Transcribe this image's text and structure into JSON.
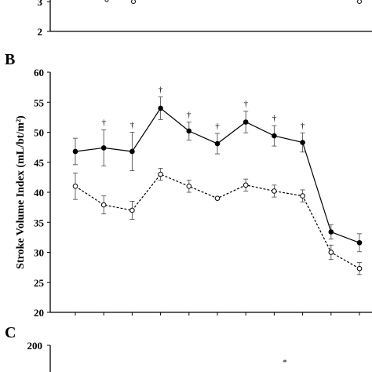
{
  "panels": {
    "A": {
      "letter": "",
      "ticks": [
        "3",
        "2"
      ]
    },
    "B": {
      "letter": "B"
    },
    "C": {
      "letter": "C",
      "ticks": [
        "200"
      ],
      "marker": "*"
    }
  },
  "chart_data": {
    "type": "line",
    "title": "",
    "xlabel": "",
    "ylabel": "Stroke Volume Index (mL/bt/m²)",
    "ylim": [
      20,
      60
    ],
    "yticks": [
      20,
      25,
      30,
      35,
      40,
      45,
      50,
      55,
      60
    ],
    "x": [
      1,
      2,
      3,
      4,
      5,
      6,
      7,
      8,
      9,
      10,
      11
    ],
    "series": [
      {
        "style": "solid-filled",
        "values": [
          46.8,
          47.4,
          46.8,
          54.0,
          50.2,
          48.1,
          51.7,
          49.4,
          48.3,
          33.4,
          31.6
        ],
        "errors": [
          2.2,
          3.0,
          3.2,
          1.9,
          1.5,
          1.7,
          1.8,
          1.7,
          1.6,
          1.2,
          1.5
        ]
      },
      {
        "style": "dashed-open",
        "values": [
          41.0,
          37.9,
          37.0,
          43.0,
          41.0,
          39.0,
          41.2,
          40.2,
          39.4,
          30.0,
          27.3
        ],
        "errors": [
          2.2,
          1.5,
          1.5,
          1.0,
          1.0,
          0.0,
          1.0,
          1.0,
          1.0,
          1.2,
          1.0
        ]
      }
    ],
    "significance": {
      "symbol": "†",
      "points": [
        2,
        3,
        4,
        5,
        6,
        7,
        8,
        9
      ]
    }
  }
}
